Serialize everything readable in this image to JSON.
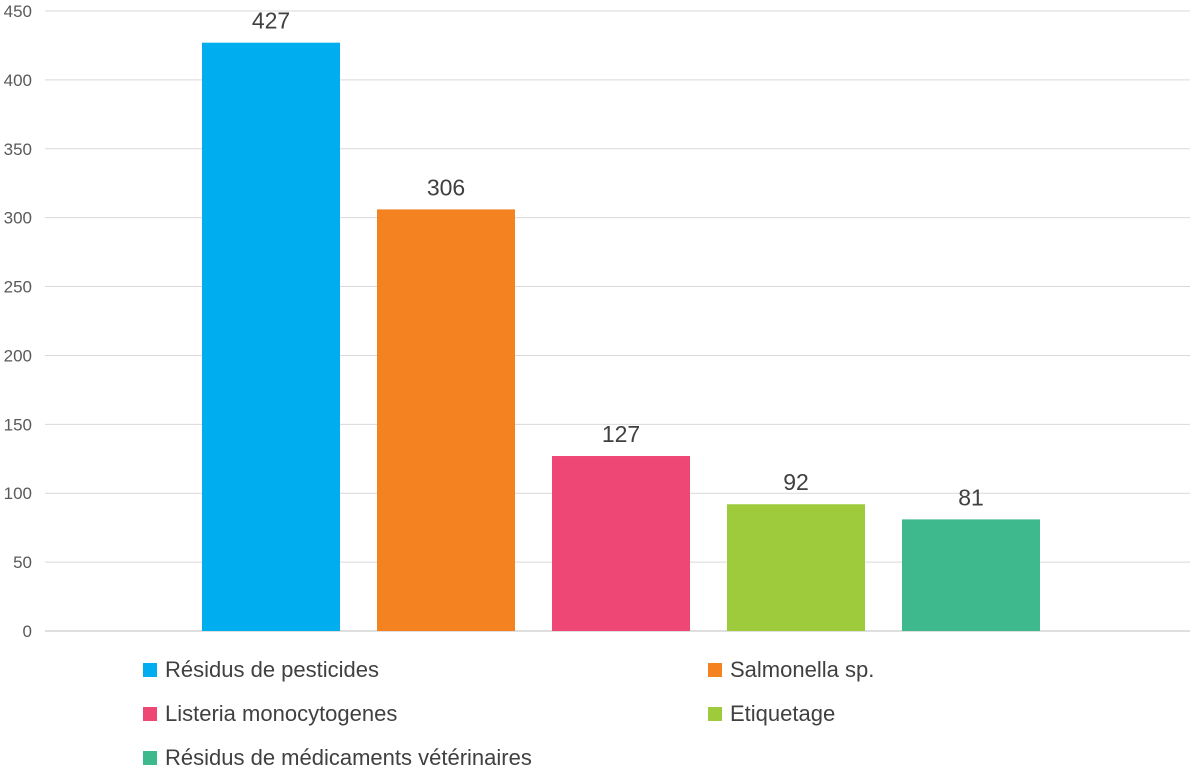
{
  "chart_data": {
    "type": "bar",
    "categories": [
      "Résidus de pesticides",
      "Salmonella sp.",
      "Listeria monocytogenes",
      "Etiquetage",
      "Résidus de médicaments vétérinaires"
    ],
    "values": [
      427,
      306,
      127,
      92,
      81
    ],
    "colors": [
      "#00AEEF",
      "#F58220",
      "#EE4675",
      "#9DCB3C",
      "#3DB98D"
    ],
    "ylim": [
      0,
      450
    ],
    "yticks": [
      0,
      50,
      100,
      150,
      200,
      250,
      300,
      350,
      400,
      450
    ],
    "grid": true,
    "data_labels": true,
    "legend_position": "bottom",
    "title": "",
    "xlabel": "",
    "ylabel": ""
  }
}
